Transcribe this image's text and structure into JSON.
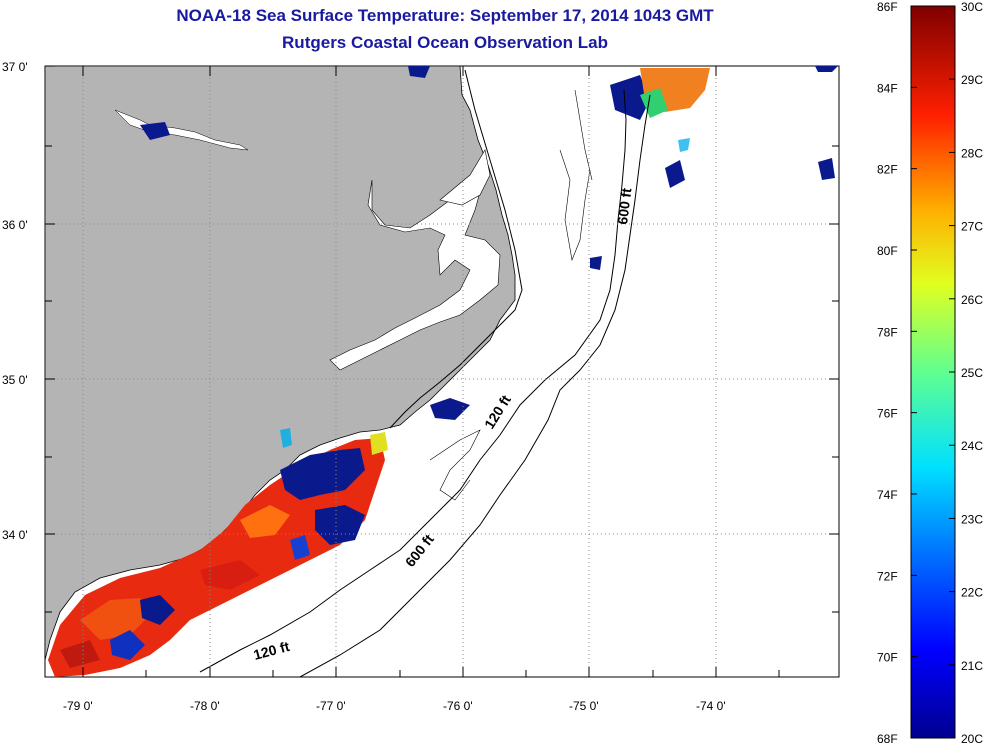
{
  "title": {
    "line1": "NOAA-18 Sea Surface Temperature:  September 17, 2014 1043 GMT",
    "line2": "Rutgers Coastal Ocean Observation Lab"
  },
  "axes": {
    "lat_labels": [
      "37 0'",
      "36 0'",
      "35 0'",
      "34 0'"
    ],
    "lon_labels": [
      "-79 0'",
      "-78 0'",
      "-77 0'",
      "-76 0'",
      "-75 0'",
      "-74 0'"
    ]
  },
  "contours": {
    "c600_top": "600 ft",
    "c120_mid": "120 ft",
    "c600_mid": "600 ft",
    "c120_bot": "120 ft"
  },
  "colorbar": {
    "fahrenheit": [
      "86F",
      "84F",
      "82F",
      "80F",
      "78F",
      "76F",
      "74F",
      "72F",
      "70F",
      "68F"
    ],
    "celsius": [
      "30C",
      "29C",
      "28C",
      "27C",
      "26C",
      "25C",
      "24C",
      "23C",
      "22C",
      "21C",
      "20C"
    ],
    "min_c": 20,
    "max_c": 30
  },
  "colors": {
    "land": "#b4b4b4",
    "title": "#1a1aa0",
    "warm": "#e82a10",
    "cold": "#0a1a8c"
  }
}
